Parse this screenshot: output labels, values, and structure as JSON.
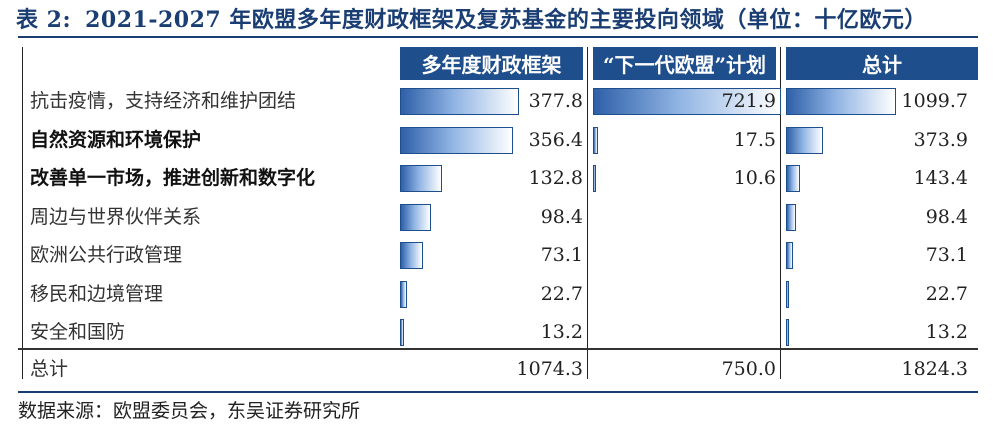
{
  "title": {
    "label": "表 2:",
    "text": "2021-2027 年欧盟多年度财政框架及复苏基金的主要投向领域（单位：十亿欧元）"
  },
  "headers": {
    "mff": "多年度财政框架",
    "ngeu": "“下一代欧盟”计划",
    "total": "总计"
  },
  "rows": [
    {
      "label": "抗击疫情，支持经济和维护团结",
      "bold": false,
      "mff": "377.8",
      "ngeu": "721.9",
      "total": "1099.7"
    },
    {
      "label": "自然资源和环境保护",
      "bold": true,
      "mff": "356.4",
      "ngeu": "17.5",
      "total": "373.9"
    },
    {
      "label": "改善单一市场，推进创新和数字化",
      "bold": true,
      "mff": "132.8",
      "ngeu": "10.6",
      "total": "143.4"
    },
    {
      "label": "周边与世界伙伴关系",
      "bold": false,
      "mff": "98.4",
      "ngeu": "",
      "total": "98.4"
    },
    {
      "label": "欧洲公共行政管理",
      "bold": false,
      "mff": "73.1",
      "ngeu": "",
      "total": "73.1"
    },
    {
      "label": "移民和边境管理",
      "bold": false,
      "mff": "22.7",
      "ngeu": "",
      "total": "22.7"
    },
    {
      "label": "安全和国防",
      "bold": false,
      "mff": "13.2",
      "ngeu": "",
      "total": "13.2"
    }
  ],
  "total_row": {
    "label": "总计",
    "mff": "1074.3",
    "ngeu": "750.0",
    "total": "1824.3"
  },
  "source": "数据来源：欧盟委员会，东吴证券研究所",
  "colors": {
    "header_bg": "#1f4e8c",
    "title": "#1a3e73",
    "bar_dark": "#2e5fa8"
  }
}
